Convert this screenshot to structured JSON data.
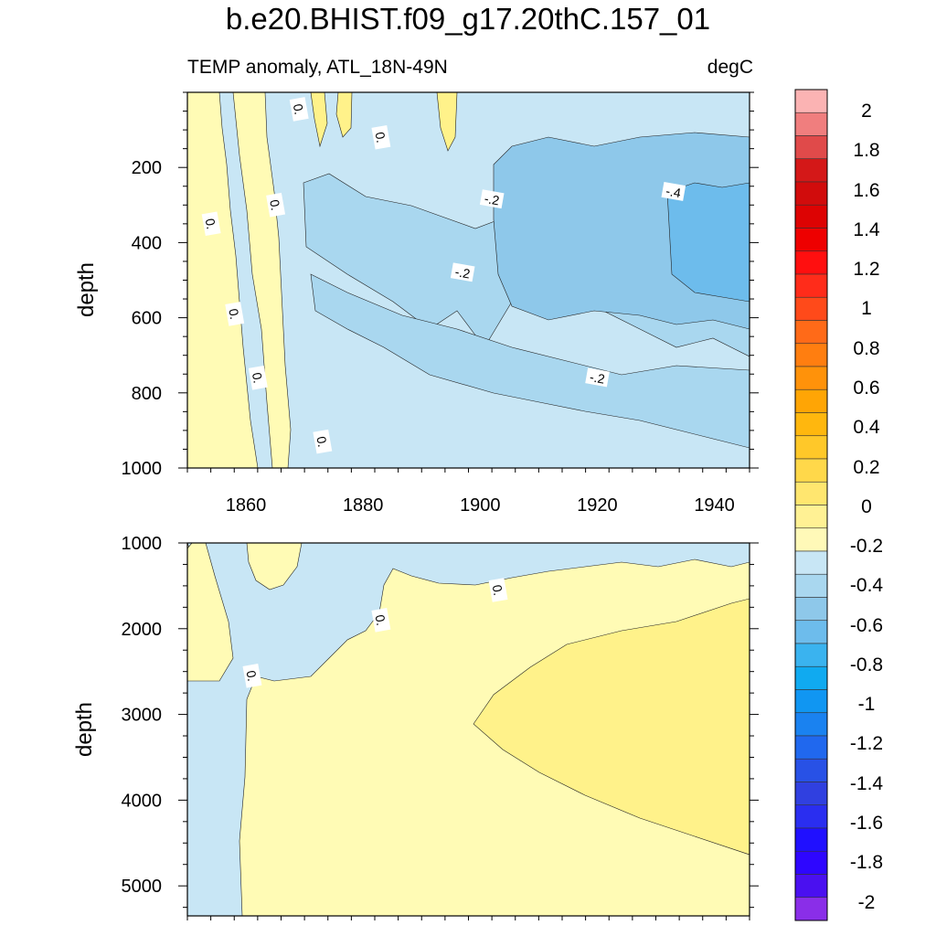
{
  "title": "b.e20.BHIST.f09_g17.20thC.157_01",
  "subtitle_left": "TEMP anomaly, ATL_18N-49N",
  "subtitle_right": "degC",
  "chart_data": [
    {
      "type": "heatmap",
      "name": "upper-panel",
      "ylabel": "depth",
      "xlabel": "",
      "xlim": [
        1850,
        1946
      ],
      "ylim": [
        0,
        1000
      ],
      "y_inverted": true,
      "x_ticks": [
        1860,
        1880,
        1900,
        1920,
        1940
      ],
      "y_ticks": [
        200,
        400,
        600,
        800,
        1000
      ],
      "contour_labels": [
        {
          "text": "0.",
          "x": 1854,
          "y": 350
        },
        {
          "text": "0.",
          "x": 1858,
          "y": 590
        },
        {
          "text": "0.",
          "x": 1862,
          "y": 760
        },
        {
          "text": "0.",
          "x": 1865,
          "y": 300
        },
        {
          "text": "0.",
          "x": 1869,
          "y": 45
        },
        {
          "text": "0.",
          "x": 1873,
          "y": 930
        },
        {
          "text": "0.",
          "x": 1883,
          "y": 120
        },
        {
          "text": "-.2",
          "x": 1902,
          "y": 285
        },
        {
          "text": "-.2",
          "x": 1897,
          "y": 480
        },
        {
          "text": "-.2",
          "x": 1920,
          "y": 760
        },
        {
          "text": "-.4",
          "x": 1933,
          "y": 265
        }
      ],
      "description_regions": [
        {
          "level": "0 to 0.2",
          "x": [
            1850,
            1867
          ],
          "y": [
            0,
            1000
          ]
        },
        {
          "level": "-0.2 to 0",
          "x": [
            1867,
            1946
          ],
          "y": [
            0,
            1000
          ]
        },
        {
          "level": "-0.4 to -0.2",
          "x": [
            1895,
            1946
          ],
          "y": [
            150,
            900
          ]
        },
        {
          "level": "-0.6 to -0.4",
          "x": [
            1930,
            1946
          ],
          "y": [
            200,
            550
          ]
        }
      ]
    },
    {
      "type": "heatmap",
      "name": "lower-panel",
      "ylabel": "depth",
      "xlabel": "",
      "xlim": [
        1850,
        1946
      ],
      "ylim": [
        1000,
        5350
      ],
      "y_inverted": true,
      "x_ticks": [
        1860,
        1880,
        1900,
        1920,
        1940
      ],
      "y_ticks": [
        1000,
        2000,
        3000,
        4000,
        5000
      ],
      "contour_labels": [
        {
          "text": "0.",
          "x": 1861,
          "y": 2550
        },
        {
          "text": "0.",
          "x": 1883,
          "y": 1900
        },
        {
          "text": "0.",
          "x": 1903,
          "y": 1550
        }
      ]
    }
  ],
  "colorbar": {
    "levels": [
      "2",
      "1.8",
      "1.6",
      "1.4",
      "1.2",
      "1",
      "0.8",
      "0.6",
      "0.4",
      "0.2",
      "0",
      "-0.2",
      "-0.4",
      "-0.6",
      "-0.8",
      "-1",
      "-1.2",
      "-1.4",
      "-1.6",
      "-1.8",
      "-2"
    ],
    "colors": [
      "#fbb3b3",
      "#f07e7e",
      "#e04a4a",
      "#d41818",
      "#d10c0c",
      "#dd0303",
      "#ee0000",
      "#ff0f0f",
      "#ff2c1a",
      "#ff4a1a",
      "#ff6a18",
      "#ff7e10",
      "#ff920a",
      "#ffa505",
      "#ffb70e",
      "#ffc829",
      "#ffd84a",
      "#ffe66f",
      "#fff194",
      "#fff9b8",
      "#c8e6f5",
      "#a9d7ef",
      "#8ec8ea",
      "#6dbcec",
      "#3ab3ef",
      "#10aaf0",
      "#1096f2",
      "#1a82f0",
      "#2068ee",
      "#2851e6",
      "#3040e0",
      "#2a2ef0",
      "#2010ff",
      "#2e06ff",
      "#4a10f0",
      "#8a2ee8"
    ]
  },
  "palette": {
    "pos_0": "#fffbb5",
    "pos_1": "#fff28a",
    "neg_0": "#c8e6f5",
    "neg_1": "#a9d7ef",
    "neg_2": "#8ec8ea",
    "neg_3": "#6dbcec"
  }
}
